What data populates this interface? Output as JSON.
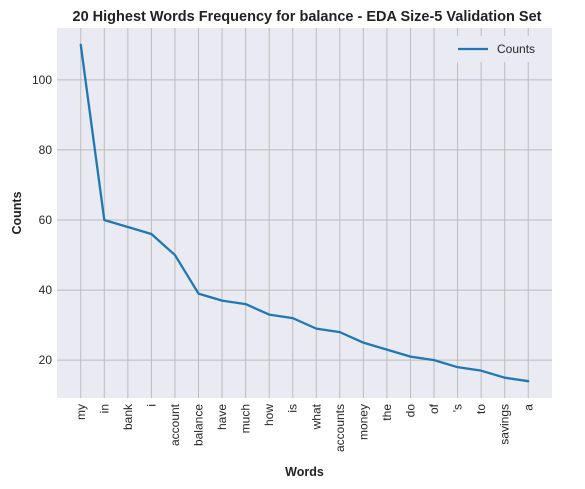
{
  "chart_data": {
    "type": "line",
    "title": "20 Highest Words Frequency for balance - EDA Size-5 Validation Set",
    "xlabel": "Words",
    "ylabel": "Counts",
    "categories": [
      "my",
      "in",
      "bank",
      "i",
      "account",
      "balance",
      "have",
      "much",
      "how",
      "is",
      "what",
      "accounts",
      "money",
      "the",
      "do",
      "of",
      "'s",
      "to",
      "savings",
      "a"
    ],
    "series": [
      {
        "name": "Counts",
        "values": [
          110,
          60,
          58,
          56,
          50,
          39,
          37,
          36,
          33,
          32,
          29,
          28,
          25,
          23,
          21,
          20,
          18,
          17,
          15,
          14
        ],
        "color": "#1f77b4"
      }
    ],
    "ylim": [
      9.2,
      114.8
    ],
    "yticks": [
      20,
      40,
      60,
      80,
      100
    ],
    "grid": true,
    "legend": "top-right",
    "background": "#eaeaf2",
    "grid_color": "#bcbcbc"
  }
}
